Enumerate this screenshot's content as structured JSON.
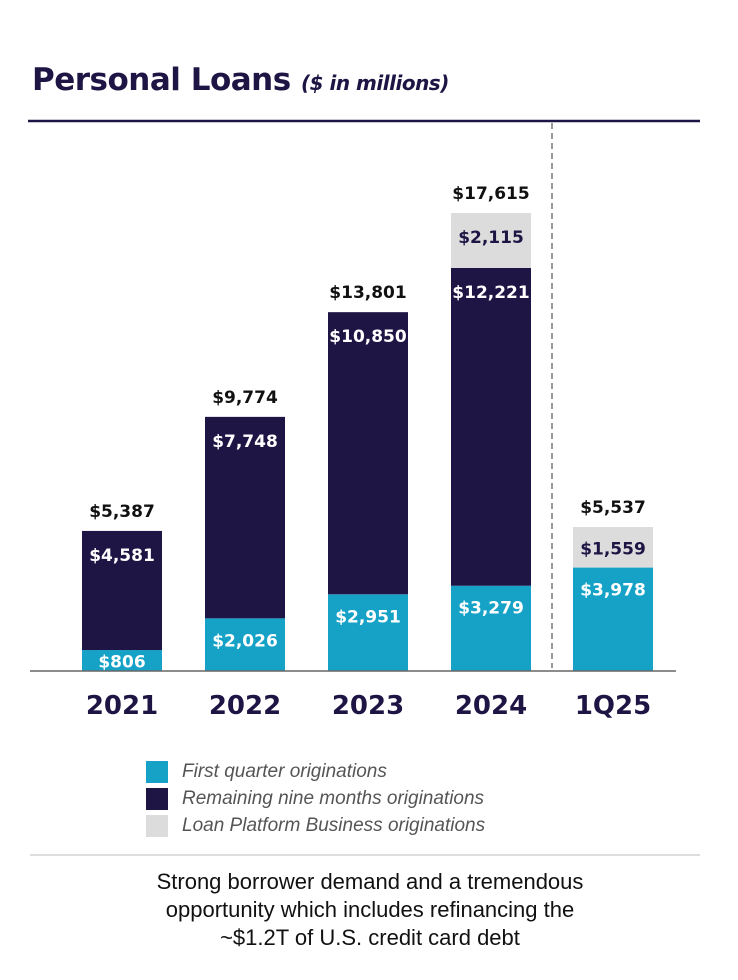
{
  "chart_data": {
    "type": "bar",
    "stacked": true,
    "title": "Personal Loans",
    "subtitle": "($ in millions)",
    "categories": [
      "2021",
      "2022",
      "2023",
      "2024",
      "1Q25"
    ],
    "series": [
      {
        "name": "First quarter originations",
        "color": "#15a2c6",
        "values": [
          806,
          2026,
          2951,
          3279,
          3978
        ],
        "labels": [
          "$806",
          "$2,026",
          "$2,951",
          "$3,279",
          "$3,978"
        ]
      },
      {
        "name": "Remaining nine months originations",
        "color": "#1f1545",
        "values": [
          4581,
          7748,
          10850,
          12221,
          null
        ],
        "labels": [
          "$4,581",
          "$7,748",
          "$10,850",
          "$12,221",
          null
        ]
      },
      {
        "name": "Loan Platform Business originations",
        "color": "#dcdcdc",
        "values": [
          null,
          null,
          null,
          2115,
          1559
        ],
        "labels": [
          null,
          null,
          null,
          "$2,115",
          "$1,559"
        ]
      }
    ],
    "totals": [
      5387,
      9774,
      13801,
      17615,
      5537
    ],
    "total_labels": [
      "$5,387",
      "$9,774",
      "$13,801",
      "$17,615",
      "$5,537"
    ],
    "ylim": [
      0,
      17615
    ],
    "legend_position": "bottom",
    "grid": false
  },
  "footer": {
    "line1": "Strong borrower demand and a tremendous",
    "line2": "opportunity which includes refinancing the",
    "line3": "~$1.2T of U.S. credit card debt"
  }
}
